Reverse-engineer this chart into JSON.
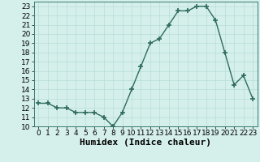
{
  "x": [
    0,
    1,
    2,
    3,
    4,
    5,
    6,
    7,
    8,
    9,
    10,
    11,
    12,
    13,
    14,
    15,
    16,
    17,
    18,
    19,
    20,
    21,
    22,
    23
  ],
  "y": [
    12.5,
    12.5,
    12.0,
    12.0,
    11.5,
    11.5,
    11.5,
    11.0,
    10.0,
    11.5,
    14.0,
    16.5,
    19.0,
    19.5,
    21.0,
    22.5,
    22.5,
    23.0,
    23.0,
    21.5,
    18.0,
    14.5,
    15.5,
    13.0
  ],
  "line_color": "#2e6b5e",
  "marker": "+",
  "marker_size": 5,
  "bg_color": "#d5f0eb",
  "grid_color": "#b8ddd8",
  "xlabel": "Humidex (Indice chaleur)",
  "xlim": [
    -0.5,
    23.5
  ],
  "ylim": [
    10,
    23.5
  ],
  "yticks": [
    10,
    11,
    12,
    13,
    14,
    15,
    16,
    17,
    18,
    19,
    20,
    21,
    22,
    23
  ],
  "xticks": [
    0,
    1,
    2,
    3,
    4,
    5,
    6,
    7,
    8,
    9,
    10,
    11,
    12,
    13,
    14,
    15,
    16,
    17,
    18,
    19,
    20,
    21,
    22,
    23
  ],
  "tick_fontsize": 6.5,
  "xlabel_fontsize": 8,
  "linewidth": 1.0,
  "marker_color": "#2e6b5e"
}
